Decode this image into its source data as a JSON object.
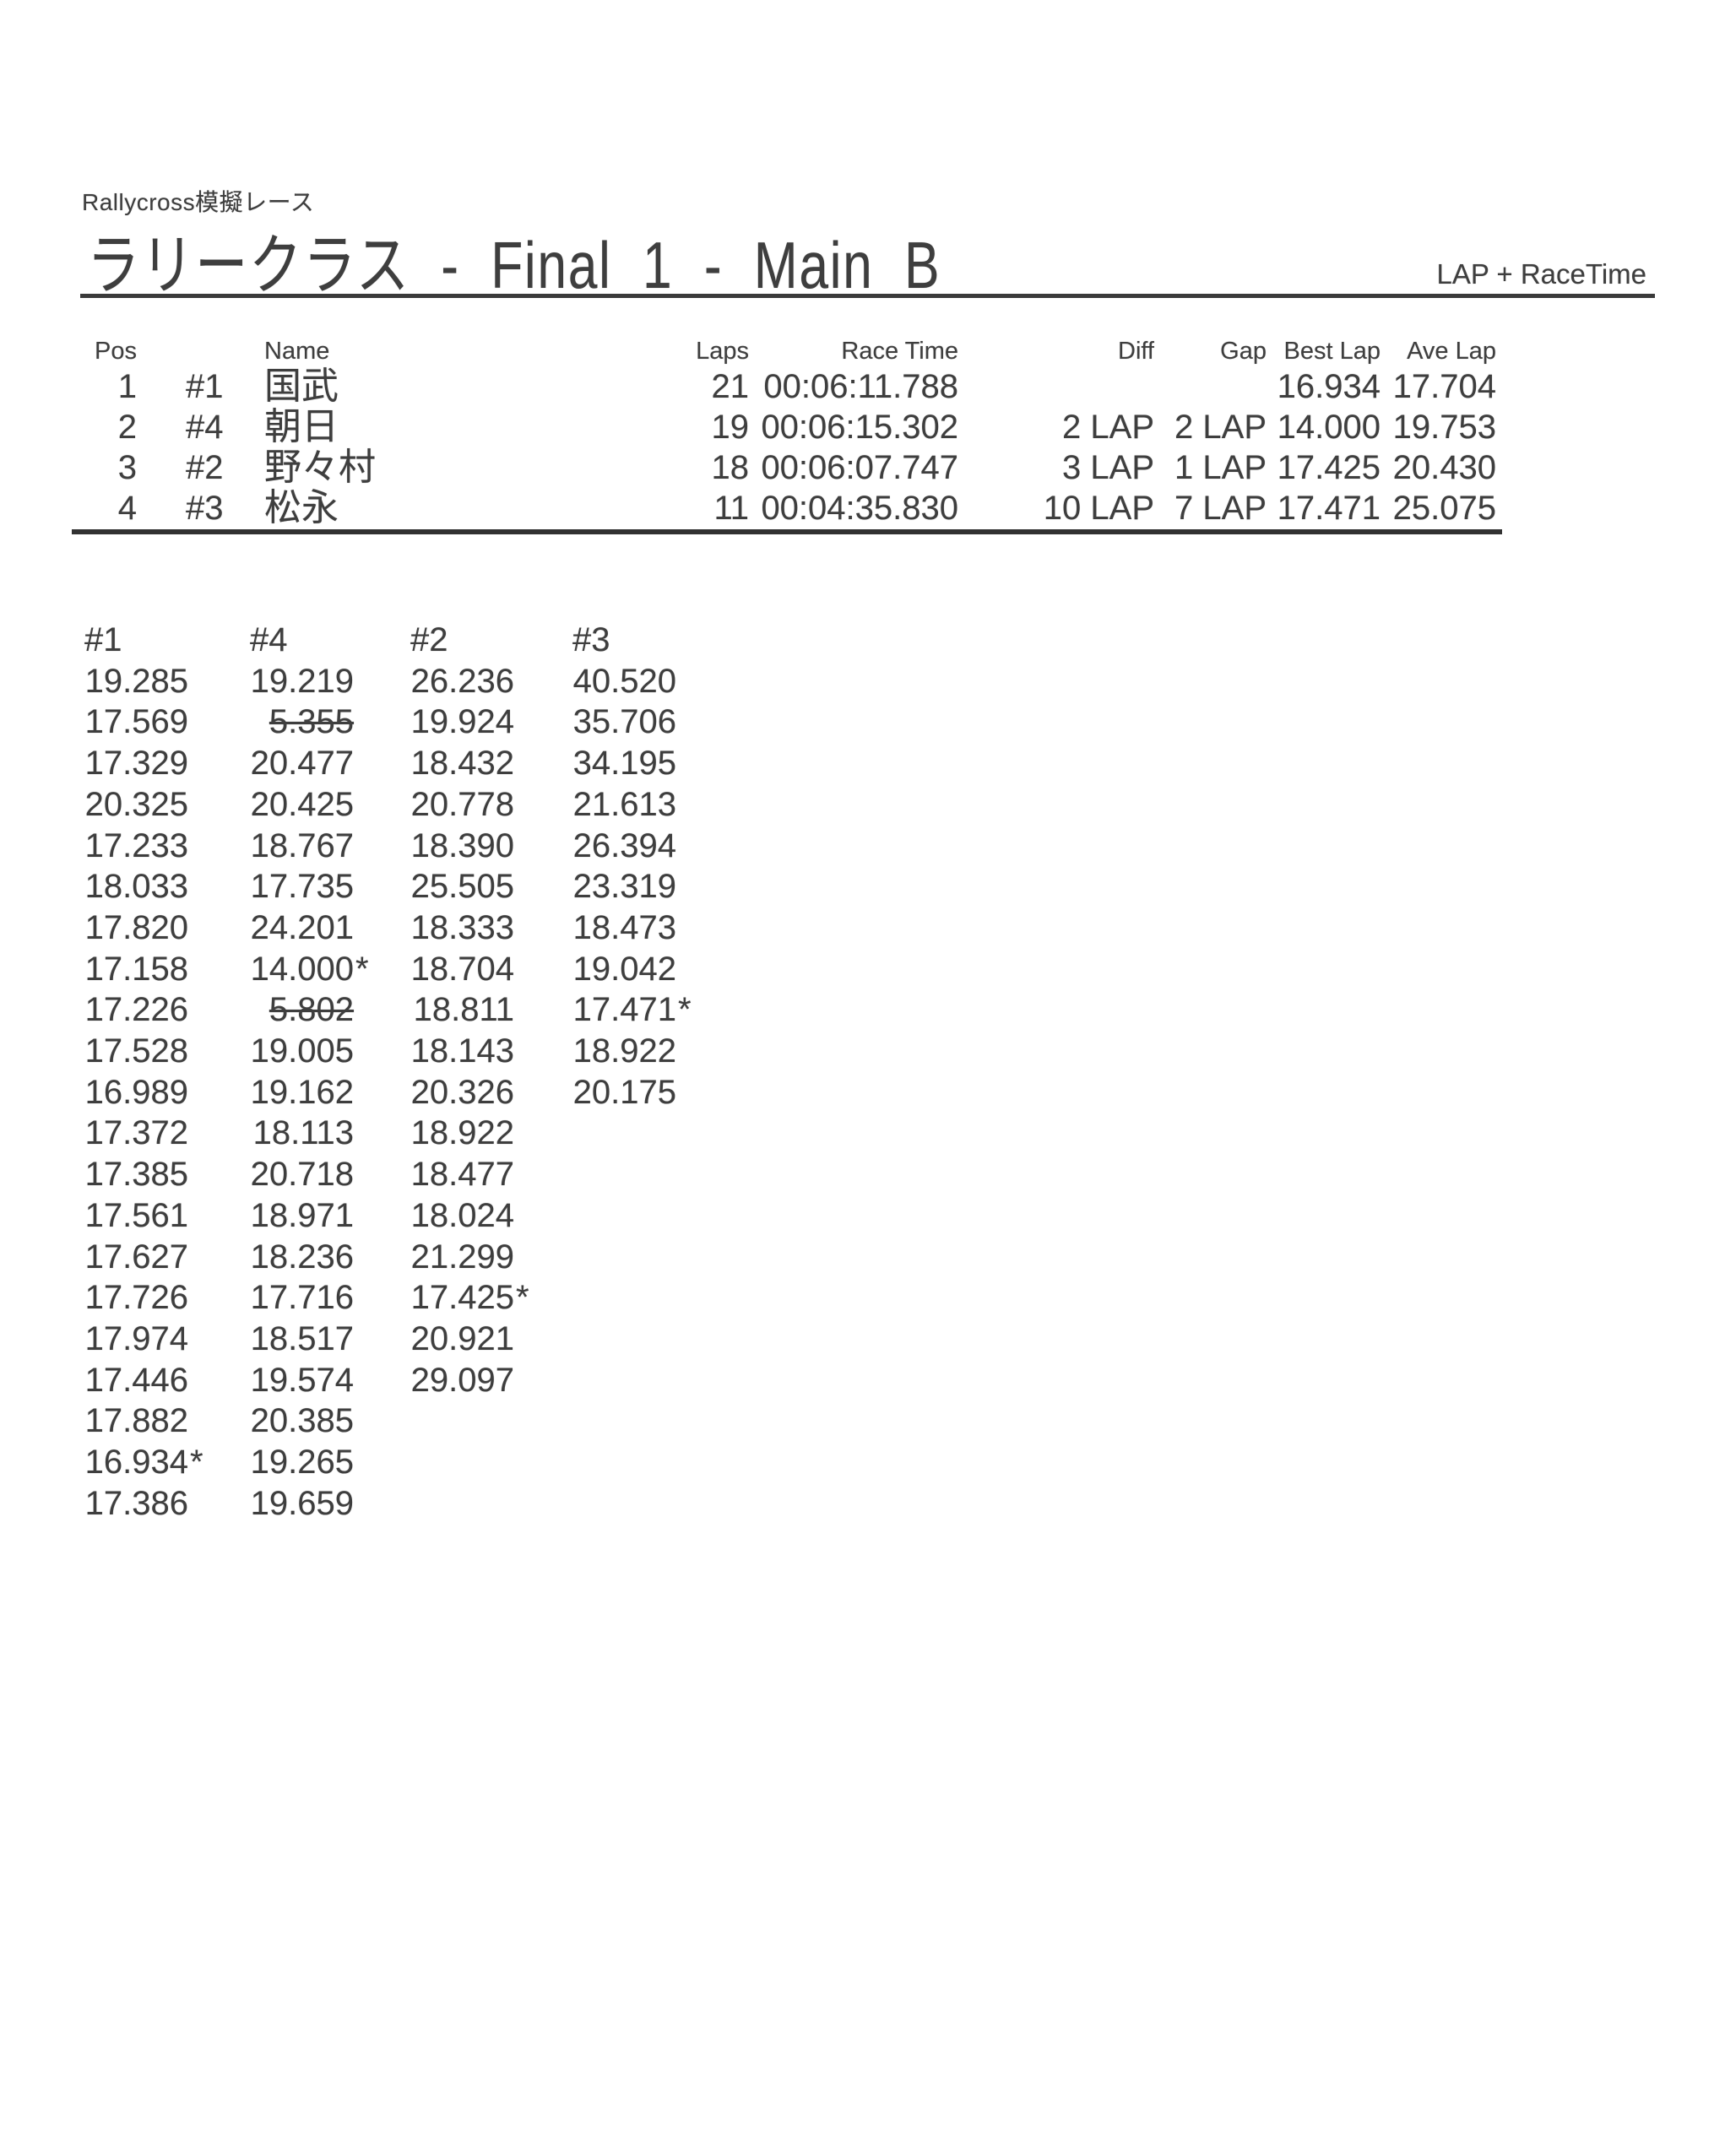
{
  "header": {
    "event_line": "Rallycross模擬レース",
    "title": "ラリークラス - Final 1 - Main B",
    "scoring": "LAP + RaceTime"
  },
  "results_table": {
    "headers": {
      "pos": "Pos",
      "name": "Name",
      "laps": "Laps",
      "race_time": "Race Time",
      "diff": "Diff",
      "gap": "Gap",
      "best_lap": "Best Lap",
      "ave_lap": "Ave Lap"
    },
    "rows": [
      {
        "pos": "1",
        "car": "#1",
        "name": "国武",
        "laps": "21",
        "race_time": "00:06:11.788",
        "diff": "",
        "gap": "",
        "best_lap": "16.934",
        "ave_lap": "17.704"
      },
      {
        "pos": "2",
        "car": "#4",
        "name": "朝日",
        "laps": "19",
        "race_time": "00:06:15.302",
        "diff": "2 LAP",
        "gap": "2 LAP",
        "best_lap": "14.000",
        "ave_lap": "19.753"
      },
      {
        "pos": "3",
        "car": "#2",
        "name": "野々村",
        "laps": "18",
        "race_time": "00:06:07.747",
        "diff": "3 LAP",
        "gap": "1 LAP",
        "best_lap": "17.425",
        "ave_lap": "20.430"
      },
      {
        "pos": "4",
        "car": "#3",
        "name": "松永",
        "laps": "11",
        "race_time": "00:04:35.830",
        "diff": "10 LAP",
        "gap": "7 LAP",
        "best_lap": "17.471",
        "ave_lap": "25.075"
      }
    ]
  },
  "lap_times": {
    "columns": [
      {
        "car": "#1",
        "laps": [
          {
            "t": "19.285"
          },
          {
            "t": "17.569"
          },
          {
            "t": "17.329"
          },
          {
            "t": "20.325"
          },
          {
            "t": "17.233"
          },
          {
            "t": "18.033"
          },
          {
            "t": "17.820"
          },
          {
            "t": "17.158"
          },
          {
            "t": "17.226"
          },
          {
            "t": "17.528"
          },
          {
            "t": "16.989"
          },
          {
            "t": "17.372"
          },
          {
            "t": "17.385"
          },
          {
            "t": "17.561"
          },
          {
            "t": "17.627"
          },
          {
            "t": "17.726"
          },
          {
            "t": "17.974"
          },
          {
            "t": "17.446"
          },
          {
            "t": "17.882"
          },
          {
            "t": "16.934",
            "star": true
          },
          {
            "t": "17.386"
          }
        ]
      },
      {
        "car": "#4",
        "laps": [
          {
            "t": "19.219"
          },
          {
            "t": "5.355",
            "struck": true
          },
          {
            "t": "20.477"
          },
          {
            "t": "20.425"
          },
          {
            "t": "18.767"
          },
          {
            "t": "17.735"
          },
          {
            "t": "24.201"
          },
          {
            "t": "14.000",
            "star": true
          },
          {
            "t": "5.802",
            "struck": true
          },
          {
            "t": "19.005"
          },
          {
            "t": "19.162"
          },
          {
            "t": "18.113"
          },
          {
            "t": "20.718"
          },
          {
            "t": "18.971"
          },
          {
            "t": "18.236"
          },
          {
            "t": "17.716"
          },
          {
            "t": "18.517"
          },
          {
            "t": "19.574"
          },
          {
            "t": "20.385"
          },
          {
            "t": "19.265"
          },
          {
            "t": "19.659"
          }
        ]
      },
      {
        "car": "#2",
        "laps": [
          {
            "t": "26.236"
          },
          {
            "t": "19.924"
          },
          {
            "t": "18.432"
          },
          {
            "t": "20.778"
          },
          {
            "t": "18.390"
          },
          {
            "t": "25.505"
          },
          {
            "t": "18.333"
          },
          {
            "t": "18.704"
          },
          {
            "t": "18.811"
          },
          {
            "t": "18.143"
          },
          {
            "t": "20.326"
          },
          {
            "t": "18.922"
          },
          {
            "t": "18.477"
          },
          {
            "t": "18.024"
          },
          {
            "t": "21.299"
          },
          {
            "t": "17.425",
            "star": true
          },
          {
            "t": "20.921"
          },
          {
            "t": "29.097"
          }
        ]
      },
      {
        "car": "#3",
        "laps": [
          {
            "t": "40.520"
          },
          {
            "t": "35.706"
          },
          {
            "t": "34.195"
          },
          {
            "t": "21.613"
          },
          {
            "t": "26.394"
          },
          {
            "t": "23.319"
          },
          {
            "t": "18.473"
          },
          {
            "t": "19.042"
          },
          {
            "t": "17.471",
            "star": true
          },
          {
            "t": "18.922"
          },
          {
            "t": "20.175"
          }
        ]
      }
    ]
  }
}
